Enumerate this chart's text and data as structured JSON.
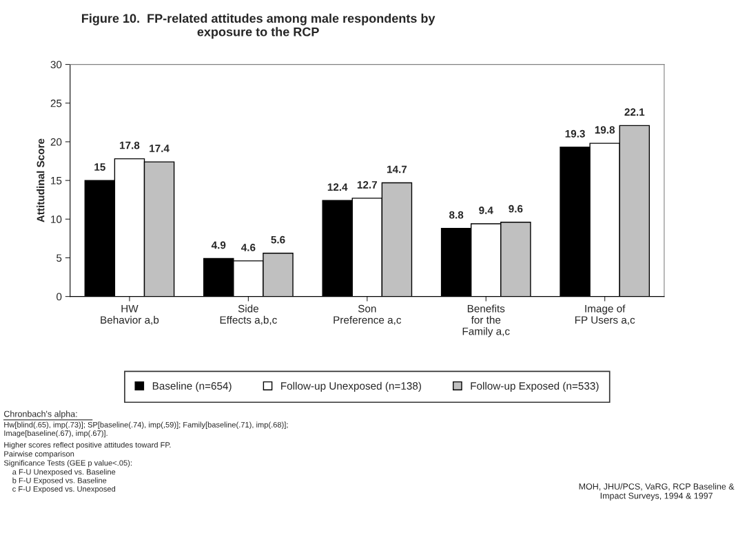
{
  "chart_data": {
    "type": "bar",
    "title": "Figure 10.  FP-related attitudes among male respondents by\nexposure to the RCP",
    "ylabel": "Attitudinal Score",
    "categories": [
      "HW\nBehavior a,b",
      "Side\nEffects a,b,c",
      "Son\nPreference a,c",
      "Benefits\nfor the\nFamily a,c",
      "Image of\nFP Users a,c"
    ],
    "series": [
      {
        "name": "Baseline (n=654)",
        "color": "#000000",
        "values": [
          15,
          4.9,
          12.4,
          8.8,
          19.3
        ]
      },
      {
        "name": "Follow-up Unexposed (n=138)",
        "color": "#ffffff",
        "values": [
          17.8,
          4.6,
          12.7,
          9.4,
          19.8
        ]
      },
      {
        "name": "Follow-up Exposed (n=533)",
        "color": "#c0c0c0",
        "values": [
          17.4,
          5.6,
          14.7,
          9.6,
          22.1
        ]
      }
    ],
    "ylim": [
      0,
      30
    ],
    "yticks": [
      0,
      5,
      10,
      15,
      20,
      25,
      30
    ],
    "data_labels": true,
    "grid": false,
    "legend": "bottom",
    "annotations": [
      "Chronbach's alpha:",
      "Hw[blind(.65), imp(.73)]; SP[baseline(.74), imp(,59)]; Family[baseline(.71), imp(.68)];\nImage[baseline(.67), imp(.67)].",
      "Higher scores reflect positive attitudes toward FP.",
      "Pairwise comparison",
      "Significance Tests (GEE p value<.05):",
      "    a F-U Unexposed vs. Baseline\n    b F-U Exposed vs. Baseline\n    c F-U Exposed vs. Unexposed",
      "MOH, JHU/PCS, VaRG, RCP Baseline &\nImpact Surveys, 1994 & 1997"
    ]
  }
}
